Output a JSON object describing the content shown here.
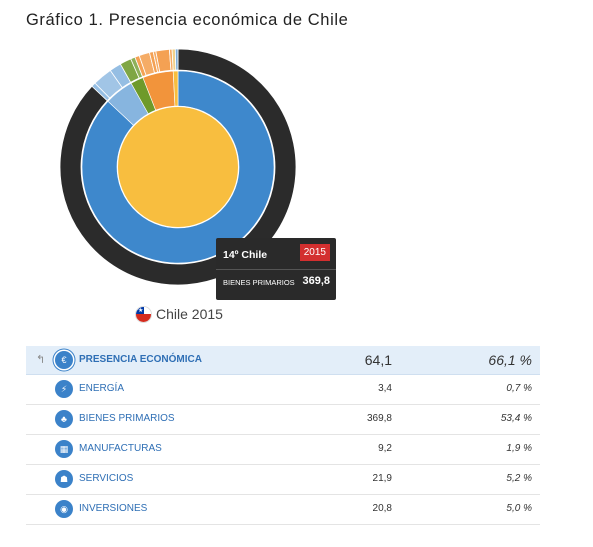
{
  "page_title": "Gráfico 1. Presencia económica de Chile",
  "colors": {
    "center": "#f8be3f",
    "bienes": "#3e88cc",
    "servicios": "#f2943b",
    "manufacturas": "#6e9a2a",
    "inversiones": "#87b5df",
    "dark": "#2b2b2b"
  },
  "tooltip": {
    "rank": "14º Chile",
    "year": "2015",
    "category": "BIENES PRIMARIOS",
    "value": "369,8"
  },
  "legend": {
    "label": "Chile 2015"
  },
  "chart_data": {
    "type": "pie",
    "title": "Gráfico 1. Presencia económica de Chile",
    "legend": [
      "Chile 2015"
    ],
    "inner_ring": [
      {
        "name": "Bienes primarios",
        "value": 369.8,
        "color": "#3e88cc"
      },
      {
        "name": "Inversiones",
        "value": 20.8,
        "color": "#87b5df"
      },
      {
        "name": "Manufacturas",
        "value": 9.2,
        "color": "#6e9a2a"
      },
      {
        "name": "Servicios",
        "value": 21.9,
        "color": "#f2943b"
      },
      {
        "name": "Energía",
        "value": 3.4,
        "color": "#f8be3f"
      }
    ],
    "outer_ring_sectors": [
      {
        "name": "Bienes primarios",
        "value": 369.8,
        "pieces": [
          0.5,
          0.5
        ]
      },
      {
        "name": "Inversiones",
        "value": 20.8,
        "pieces": [
          0.12,
          0.55,
          0.33
        ]
      },
      {
        "name": "Manufacturas",
        "value": 9.2,
        "pieces": [
          0.72,
          0.28
        ]
      },
      {
        "name": "Servicios",
        "value": 21.9,
        "pieces": [
          0.12,
          0.28,
          0.1,
          0.07,
          0.36,
          0.07
        ]
      },
      {
        "name": "Energía",
        "value": 3.4,
        "pieces": [
          0.55,
          0.45
        ]
      }
    ]
  },
  "table": {
    "header": {
      "icon": "euro-icon",
      "name": "PRESENCIA ECONÓMICA",
      "value": "64,1",
      "share": "66,1 %"
    },
    "rows": [
      {
        "icon": "energy-icon",
        "name": "ENERGÍA",
        "value": "3,4",
        "share": "0,7 %"
      },
      {
        "icon": "wheat-icon",
        "name": "BIENES PRIMARIOS",
        "value": "369,8",
        "share": "53,4 %"
      },
      {
        "icon": "factory-icon",
        "name": "MANUFACTURAS",
        "value": "9,2",
        "share": "1,9 %"
      },
      {
        "icon": "services-icon",
        "name": "SERVICIOS",
        "value": "21,9",
        "share": "5,2 %"
      },
      {
        "icon": "investment-icon",
        "name": "INVERSIONES",
        "value": "20,8",
        "share": "5,0 %"
      }
    ]
  }
}
